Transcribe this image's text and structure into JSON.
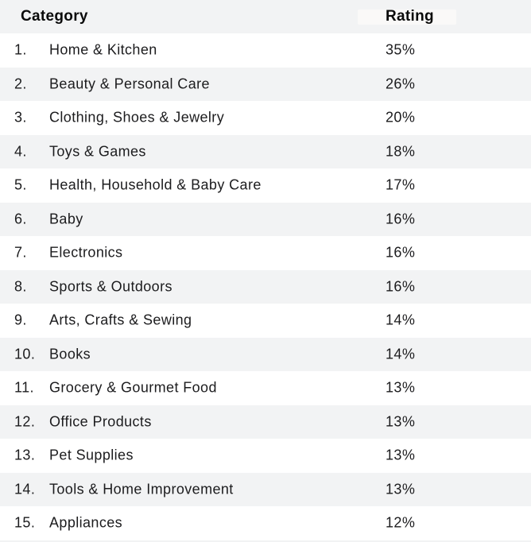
{
  "chart_data": {
    "type": "table",
    "columns": [
      "Category",
      "Rating"
    ],
    "categories": [
      "Home & Kitchen",
      "Beauty & Personal Care",
      "Clothing, Shoes & Jewelry",
      "Toys & Games",
      "Health, Household & Baby Care",
      "Baby",
      "Electronics",
      "Sports & Outdoors",
      "Arts, Crafts & Sewing",
      "Books",
      "Grocery & Gourmet Food",
      "Office Products",
      "Pet Supplies",
      "Tools & Home Improvement",
      "Appliances"
    ],
    "values_percent": [
      35,
      26,
      20,
      18,
      17,
      16,
      16,
      16,
      14,
      14,
      13,
      13,
      13,
      13,
      12
    ]
  },
  "table": {
    "header": {
      "category": "Category",
      "rating": "Rating"
    },
    "rows": [
      {
        "rank": "1.",
        "category": "Home & Kitchen",
        "rating": "35%"
      },
      {
        "rank": "2.",
        "category": "Beauty & Personal Care",
        "rating": "26%"
      },
      {
        "rank": "3.",
        "category": "Clothing, Shoes & Jewelry",
        "rating": "20%"
      },
      {
        "rank": "4.",
        "category": "Toys & Games",
        "rating": "18%"
      },
      {
        "rank": "5.",
        "category": "Health, Household & Baby Care",
        "rating": "17%"
      },
      {
        "rank": "6.",
        "category": "Baby",
        "rating": "16%"
      },
      {
        "rank": "7.",
        "category": "Electronics",
        "rating": "16%"
      },
      {
        "rank": "8.",
        "category": "Sports & Outdoors",
        "rating": "16%"
      },
      {
        "rank": "9.",
        "category": "Arts, Crafts & Sewing",
        "rating": "14%"
      },
      {
        "rank": "10.",
        "category": "Books",
        "rating": "14%"
      },
      {
        "rank": "11.",
        "category": "Grocery & Gourmet Food",
        "rating": "13%"
      },
      {
        "rank": "12.",
        "category": "Office Products",
        "rating": "13%"
      },
      {
        "rank": "13.",
        "category": "Pet Supplies",
        "rating": "13%"
      },
      {
        "rank": "14.",
        "category": "Tools & Home Improvement",
        "rating": "13%"
      },
      {
        "rank": "15.",
        "category": "Appliances",
        "rating": "12%"
      }
    ]
  },
  "colors": {
    "row_stripe": "#f2f3f4",
    "header_bg": "#f2f3f4",
    "body_text": "#1c1c1e",
    "header_text": "#0b0b0b",
    "header_highlight_patch": "#faf9f8",
    "background": "#ffffff"
  }
}
